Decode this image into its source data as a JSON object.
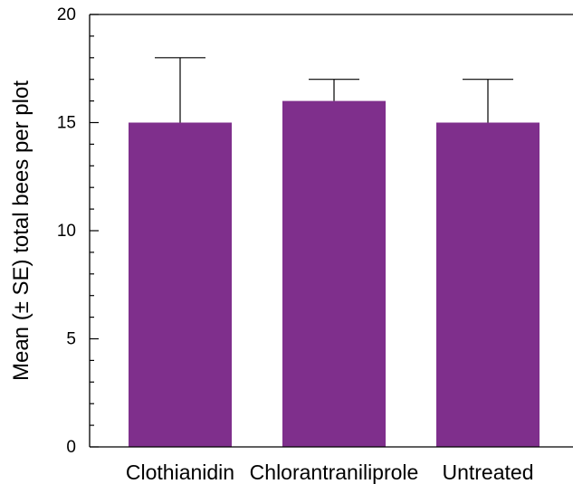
{
  "chart_data": {
    "type": "bar",
    "title": "",
    "xlabel": "",
    "ylabel": "Mean (± SE) total bees per plot",
    "categories": [
      "Clothianidin",
      "Chlorantraniliprole",
      "Untreated"
    ],
    "values": [
      15,
      16,
      15
    ],
    "error_upper": [
      18,
      17,
      17
    ],
    "ylim": [
      0,
      20
    ],
    "yticks": [
      0,
      5,
      10,
      15,
      20
    ],
    "grid": false,
    "legend": "none",
    "bar_color": "#7F2F8C"
  }
}
